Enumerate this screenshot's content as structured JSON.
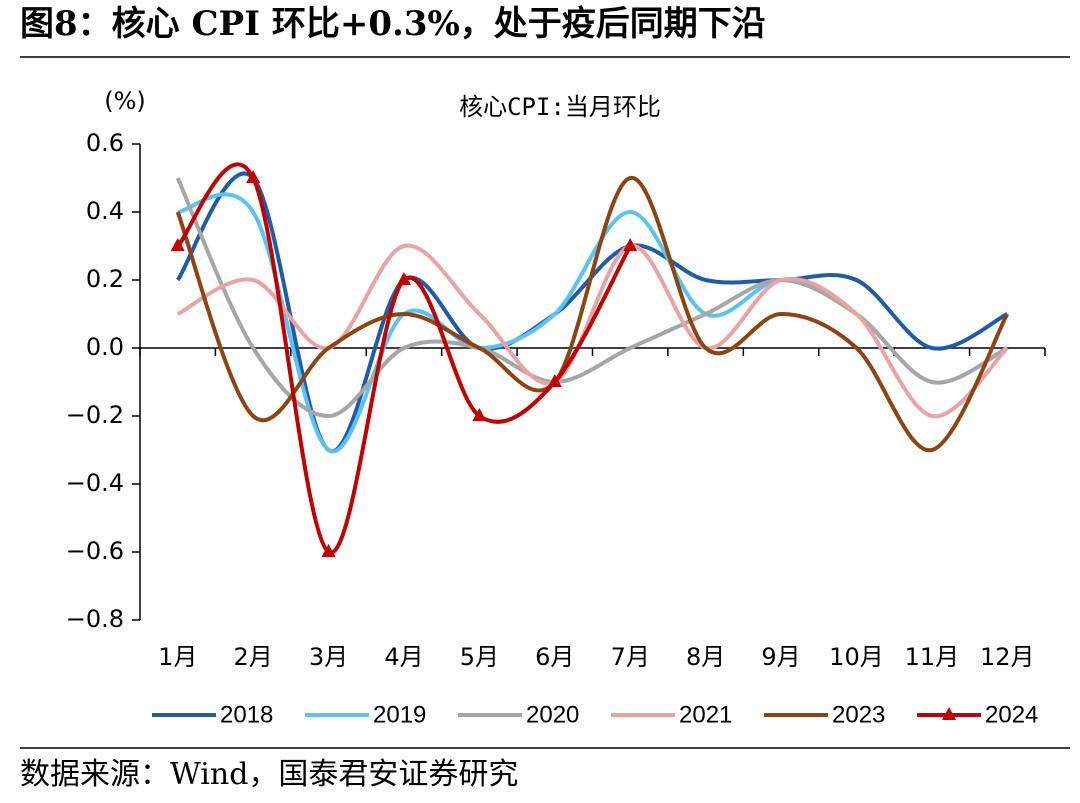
{
  "title": "图8：核心 CPI 环比+0.3%，处于疫后同期下沿",
  "source": "数据来源：Wind，国泰君安证券研究",
  "chart_data": {
    "type": "line",
    "title": "核心CPI:当月环比",
    "y_unit": "(%)",
    "categories": [
      "1月",
      "2月",
      "3月",
      "4月",
      "5月",
      "6月",
      "7月",
      "8月",
      "9月",
      "10月",
      "11月",
      "12月"
    ],
    "series": [
      {
        "name": "2018",
        "color": "#1f5ba6",
        "values": [
          0.2,
          0.5,
          -0.3,
          0.2,
          0.0,
          0.1,
          0.3,
          0.2,
          0.2,
          0.2,
          0.0,
          0.1
        ]
      },
      {
        "name": "2019",
        "color": "#5bc3f0",
        "values": [
          0.4,
          0.4,
          -0.3,
          0.1,
          0.0,
          0.1,
          0.4,
          0.1,
          0.2,
          0.1,
          -0.1,
          0.0
        ]
      },
      {
        "name": "2020",
        "color": "#a6a6a6",
        "values": [
          0.5,
          0.0,
          -0.2,
          0.0,
          0.0,
          -0.1,
          0.0,
          0.1,
          0.2,
          0.1,
          -0.1,
          0.0
        ]
      },
      {
        "name": "2021",
        "color": "#e8a3a3",
        "values": [
          0.1,
          0.2,
          0.0,
          0.3,
          0.1,
          -0.1,
          0.3,
          0.0,
          0.2,
          0.1,
          -0.2,
          0.0
        ]
      },
      {
        "name": "2023",
        "color": "#8b4513",
        "values": [
          0.4,
          -0.2,
          0.0,
          0.1,
          0.0,
          -0.1,
          0.5,
          0.0,
          0.1,
          0.0,
          -0.3,
          0.1
        ]
      },
      {
        "name": "2024",
        "color": "#c00000",
        "marker": "triangle",
        "values": [
          0.3,
          0.5,
          -0.6,
          0.2,
          -0.2,
          -0.1,
          0.3,
          null,
          null,
          null,
          null,
          null
        ]
      }
    ],
    "ylim": [
      -0.8,
      0.6
    ],
    "yticks": [
      {
        "value": 0.6,
        "label": "0.6"
      },
      {
        "value": 0.4,
        "label": "0.4"
      },
      {
        "value": 0.2,
        "label": "0.2"
      },
      {
        "value": 0,
        "label": "0.0"
      },
      {
        "value": -0.2,
        "label": "−0.2"
      },
      {
        "value": -0.4,
        "label": "−0.4"
      },
      {
        "value": -0.6,
        "label": "−0.6"
      },
      {
        "value": -0.8,
        "label": "−0.8"
      }
    ],
    "legend": "bottom"
  }
}
